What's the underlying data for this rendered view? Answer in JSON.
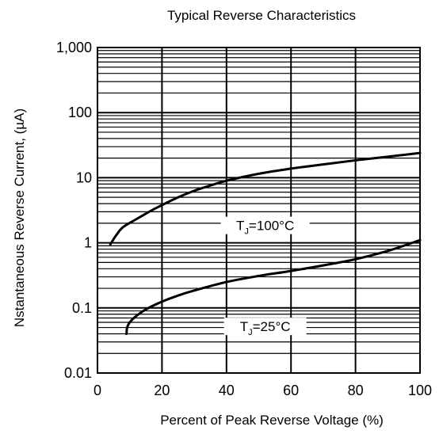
{
  "chart_data": {
    "type": "line",
    "title": "Typical Reverse Characteristics",
    "xlabel": "Percent of Peak Reverse Voltage (%)",
    "ylabel": "Nstantaneous Reverse Current, (µA)",
    "xlim": [
      0,
      100
    ],
    "ylim": [
      0.01,
      1000
    ],
    "yscale": "log",
    "grid": true,
    "x_ticks": [
      0,
      20,
      40,
      60,
      80,
      100
    ],
    "x_tick_labels": [
      "0",
      "20",
      "40",
      "60",
      "80",
      "100"
    ],
    "y_ticks": [
      0.01,
      0.1,
      1,
      10,
      100,
      1000
    ],
    "y_tick_labels": [
      "0.01",
      "0.1",
      "1",
      "10",
      "100",
      "1,000"
    ],
    "series": [
      {
        "name": "TJ=100°C",
        "label_main": "T",
        "label_sub": "J",
        "label_rest": "=100°C",
        "x": [
          4,
          6,
          8,
          12,
          16,
          20,
          25,
          30,
          35,
          40,
          50,
          60,
          70,
          80,
          90,
          100
        ],
        "y": [
          0.95,
          1.35,
          1.75,
          2.3,
          3.0,
          3.8,
          5.0,
          6.3,
          7.6,
          9.0,
          11.5,
          13.8,
          16.0,
          18.5,
          21.0,
          24.0
        ]
      },
      {
        "name": "TJ=25°C",
        "label_main": "T",
        "label_sub": "J",
        "label_rest": "=25°C",
        "x": [
          9,
          9.2,
          10,
          12,
          15,
          20,
          25,
          30,
          40,
          50,
          60,
          70,
          80,
          90,
          100
        ],
        "y": [
          0.04,
          0.05,
          0.06,
          0.075,
          0.095,
          0.125,
          0.155,
          0.185,
          0.25,
          0.31,
          0.37,
          0.45,
          0.56,
          0.75,
          1.1
        ]
      }
    ]
  }
}
